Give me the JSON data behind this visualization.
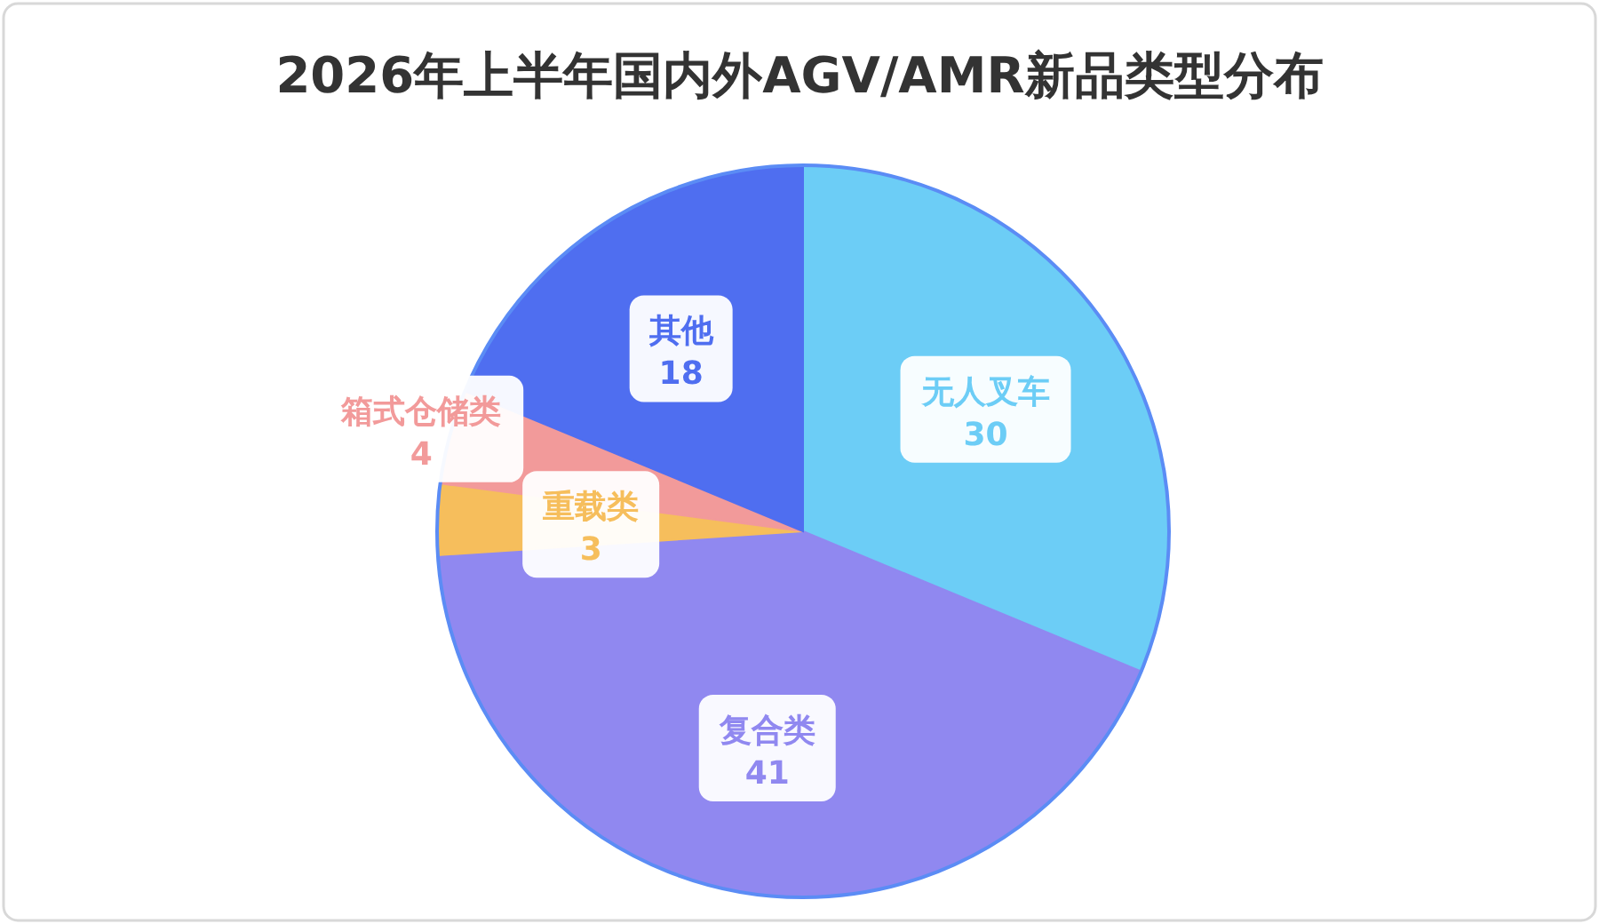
{
  "chart_data": {
    "type": "pie",
    "title": "2026年上半年国内外AGV/AMR新品类型分布",
    "categories": [
      "无人叉车",
      "复合类",
      "重载类",
      "箱式仓储类",
      "其他"
    ],
    "values": [
      30,
      41,
      3,
      4,
      18
    ],
    "colors": [
      "#6ccdf6",
      "#9088f0",
      "#f6be5c",
      "#f29a9a",
      "#4f6ef0"
    ],
    "data_labels": true
  }
}
